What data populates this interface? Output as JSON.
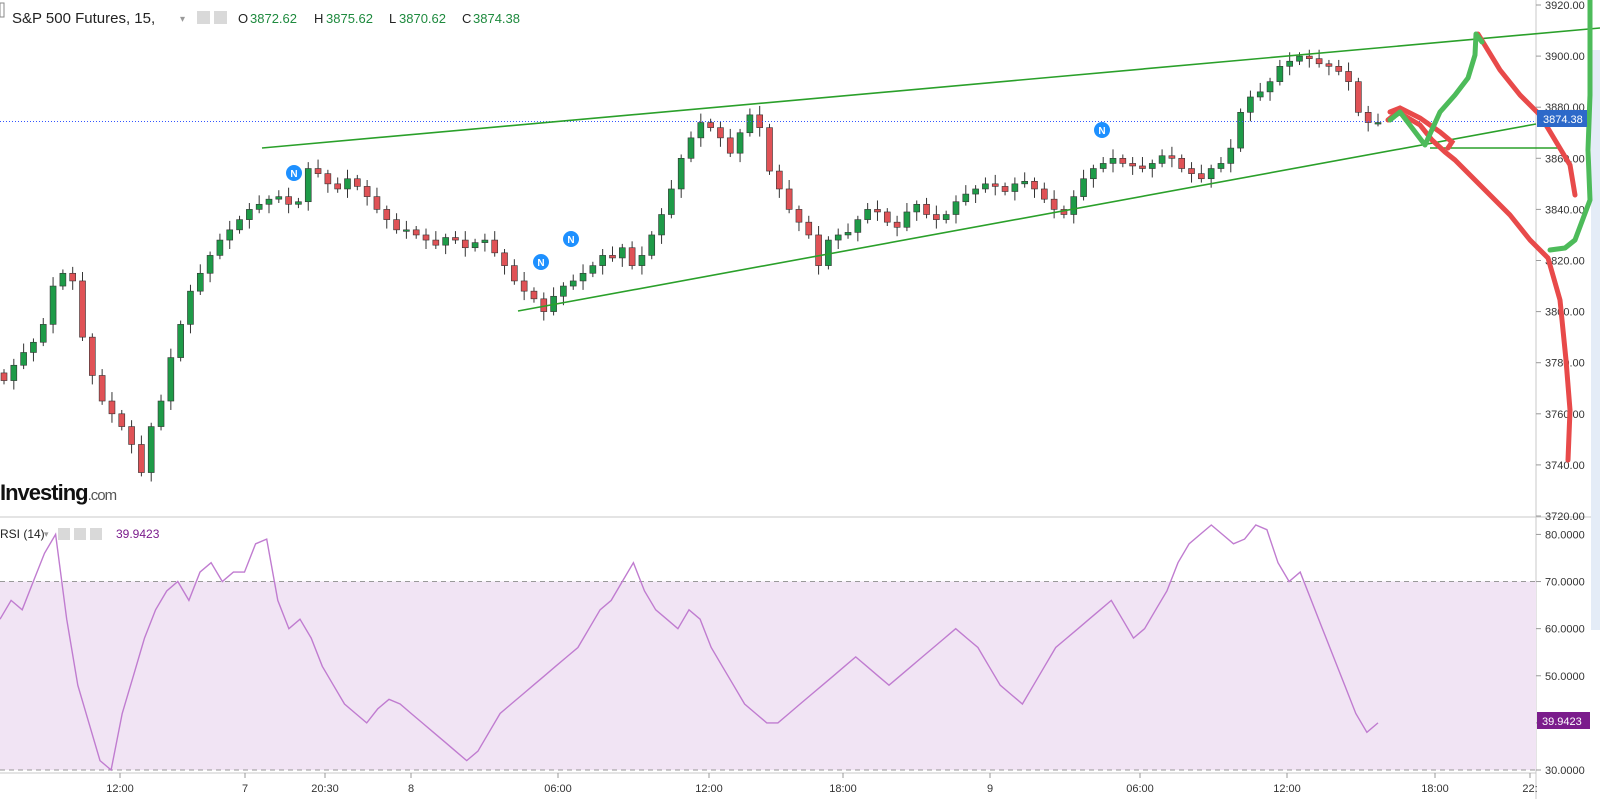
{
  "header": {
    "title": "S&P 500 Futures, 15,",
    "ohlc": [
      {
        "label": "O",
        "value": "3872.62"
      },
      {
        "label": "H",
        "value": "3875.62"
      },
      {
        "label": "L",
        "value": "3870.62"
      },
      {
        "label": "C",
        "value": "3874.38"
      }
    ]
  },
  "watermark": {
    "brand": "Investing",
    "suffix": ".com"
  },
  "price_badge": "3874.38",
  "rsi_header": {
    "label": "RSI (14)",
    "value": "39.9423"
  },
  "rsi_badge": "39.9423",
  "colors": {
    "up": "#1e9b48",
    "down": "#e05256",
    "trendline": "#2aa02a",
    "rsi_line": "#c07cd0",
    "rsi_band": "#f1e4f4",
    "price_line": "#3355ff",
    "badge_blue": "#2d69c9",
    "badge_purple": "#7b1c8c",
    "news": "#1e90ff",
    "drawn_green": "#4dbb5a",
    "drawn_red": "#e84a4a"
  },
  "chart_data": [
    {
      "type": "candlestick",
      "title": "S&P 500 Futures, 15,",
      "y_tick_labels": [
        "3720.00",
        "3740.00",
        "3760.00",
        "3780.00",
        "3800.00",
        "3820.00",
        "3840.00",
        "3860.00",
        "3880.00",
        "3900.00",
        "3920.00"
      ],
      "ylim": [
        3720,
        3920
      ],
      "x_tick_labels": [
        "12:00",
        "7",
        "20:30",
        "8",
        "06:00",
        "12:00",
        "18:00",
        "9",
        "06:00",
        "12:00",
        "18:00",
        "22:"
      ],
      "last_price": 3874.38,
      "closes_approx": [
        3773,
        3779,
        3784,
        3788,
        3795,
        3810,
        3815,
        3812,
        3790,
        3775,
        3765,
        3760,
        3755,
        3748,
        3737,
        3755,
        3765,
        3782,
        3795,
        3808,
        3815,
        3822,
        3828,
        3832,
        3836,
        3840,
        3842,
        3844,
        3845,
        3842,
        3843,
        3856,
        3854,
        3850,
        3848,
        3852,
        3849,
        3845,
        3840,
        3836,
        3832,
        3832,
        3830,
        3828,
        3826,
        3829,
        3828,
        3825,
        3827,
        3828,
        3823,
        3818,
        3812,
        3808,
        3805,
        3800,
        3806,
        3810,
        3812,
        3815,
        3818,
        3822,
        3821,
        3825,
        3818,
        3822,
        3830,
        3838,
        3848,
        3860,
        3868,
        3874,
        3872,
        3868,
        3862,
        3870,
        3877,
        3872,
        3855,
        3848,
        3840,
        3835,
        3830,
        3818,
        3828,
        3830,
        3831,
        3836,
        3840,
        3839,
        3835,
        3833,
        3839,
        3842,
        3838,
        3836,
        3838,
        3843,
        3846,
        3848,
        3850,
        3849,
        3847,
        3850,
        3851,
        3848,
        3844,
        3840,
        3838,
        3845,
        3852,
        3856,
        3858,
        3860,
        3858,
        3857,
        3856,
        3858,
        3861,
        3860,
        3856,
        3854,
        3852,
        3856,
        3858,
        3864,
        3878,
        3884,
        3886,
        3890,
        3896,
        3898,
        3900,
        3899,
        3897,
        3896,
        3894,
        3890,
        3878,
        3874,
        3874
      ],
      "drawn_annotations": [
        "ascending wedge trendlines",
        "green projection path",
        "red projection path"
      ]
    },
    {
      "type": "line",
      "title": "RSI (14)",
      "y_tick_labels": [
        "30.0000",
        "40.0000",
        "50.0000",
        "60.0000",
        "70.0000",
        "80.0000"
      ],
      "ylim": [
        30,
        82
      ],
      "bands": [
        30,
        70
      ],
      "last_value": 39.9423,
      "values_approx": [
        62,
        66,
        64,
        70,
        76,
        80,
        62,
        48,
        40,
        32,
        30,
        42,
        50,
        58,
        64,
        68,
        70,
        66,
        72,
        74,
        70,
        72,
        72,
        78,
        79,
        66,
        60,
        62,
        58,
        52,
        48,
        44,
        42,
        40,
        43,
        45,
        44,
        42,
        40,
        38,
        36,
        34,
        32,
        34,
        38,
        42,
        44,
        46,
        48,
        50,
        52,
        54,
        56,
        60,
        64,
        66,
        70,
        74,
        68,
        64,
        62,
        60,
        64,
        62,
        56,
        52,
        48,
        44,
        42,
        40,
        40,
        42,
        44,
        46,
        48,
        50,
        52,
        54,
        52,
        50,
        48,
        50,
        52,
        54,
        56,
        58,
        60,
        58,
        56,
        52,
        48,
        46,
        44,
        48,
        52,
        56,
        58,
        60,
        62,
        64,
        66,
        62,
        58,
        60,
        64,
        68,
        74,
        78,
        80,
        82,
        80,
        78,
        79,
        82,
        81,
        74,
        70,
        72,
        66,
        60,
        54,
        48,
        42,
        38,
        40
      ]
    }
  ]
}
